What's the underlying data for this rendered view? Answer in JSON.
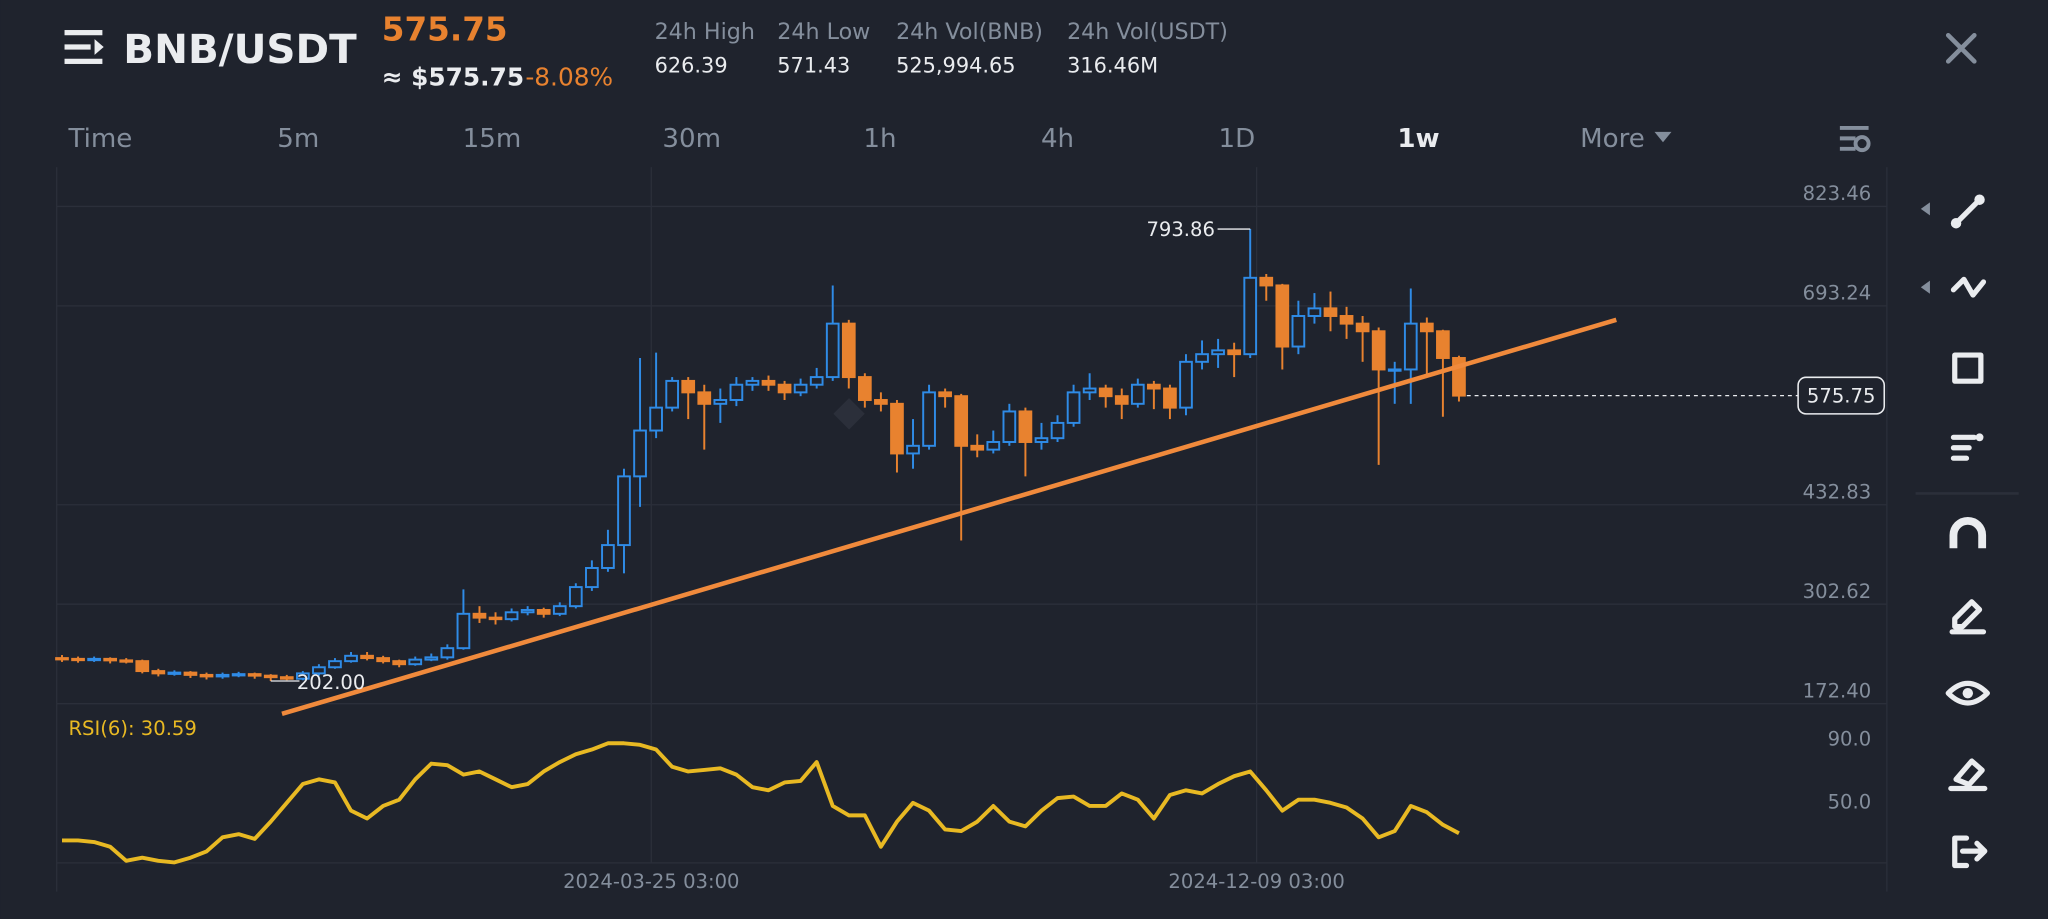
{
  "header": {
    "symbol": "BNB/USDT",
    "price": "575.75",
    "approx_price": "≈ $575.75",
    "change": "-8.08%",
    "stats": [
      {
        "label": "24h High",
        "value": "626.39"
      },
      {
        "label": "24h Low",
        "value": "571.43"
      },
      {
        "label": "24h Vol(BNB)",
        "value": "525,994.65"
      },
      {
        "label": "24h Vol(USDT)",
        "value": "316.46M"
      }
    ]
  },
  "tabs": [
    "Time",
    "5m",
    "15m",
    "30m",
    "1h",
    "4h",
    "1D",
    "1w",
    "More"
  ],
  "active_tab": "1w",
  "chart_data": [
    {
      "type": "candlestick",
      "up_color": "#2f8be6",
      "down_color": "#e8822f",
      "open": [
        232,
        231,
        230,
        231,
        229,
        228,
        215,
        212,
        213,
        210,
        208,
        210,
        211,
        209,
        207,
        205,
        212,
        220,
        228,
        235,
        232,
        228,
        224,
        230,
        233,
        245,
        290,
        285,
        283,
        292,
        295,
        290,
        300,
        325,
        350,
        380,
        470,
        530,
        560,
        595,
        580,
        565,
        570,
        590,
        595,
        590,
        580,
        590,
        600,
        670,
        600,
        570,
        565,
        500,
        510,
        580,
        575,
        510,
        505,
        515,
        555,
        515,
        520,
        540,
        580,
        585,
        575,
        565,
        590,
        585,
        560,
        620,
        630,
        635,
        630,
        730,
        720,
        640,
        680,
        690,
        680,
        670,
        660,
        610,
        610,
        670,
        660,
        625
      ],
      "high": [
        236,
        234,
        234,
        233,
        232,
        230,
        218,
        216,
        215,
        213,
        213,
        214,
        213,
        211,
        210,
        215,
        224,
        232,
        240,
        240,
        235,
        230,
        234,
        238,
        250,
        322,
        300,
        292,
        297,
        300,
        298,
        305,
        330,
        360,
        400,
        480,
        625,
        632,
        600,
        600,
        590,
        585,
        600,
        600,
        602,
        595,
        598,
        612,
        720,
        675,
        605,
        580,
        570,
        545,
        590,
        585,
        578,
        525,
        530,
        565,
        560,
        540,
        550,
        590,
        605,
        590,
        585,
        598,
        595,
        590,
        630,
        648,
        650,
        645,
        793.86,
        735,
        722,
        700,
        710,
        712,
        692,
        680,
        665,
        620,
        716,
        678,
        662,
        628
      ],
      "low": [
        227,
        226,
        227,
        225,
        225,
        212,
        208,
        209,
        206,
        204,
        205,
        207,
        205,
        202.0,
        203,
        203,
        209,
        218,
        226,
        229,
        225,
        220,
        222,
        228,
        230,
        243,
        278,
        276,
        280,
        288,
        285,
        287,
        297,
        320,
        345,
        343,
        430,
        520,
        555,
        545,
        505,
        540,
        562,
        582,
        582,
        570,
        575,
        585,
        595,
        585,
        560,
        555,
        475,
        480,
        505,
        560,
        386,
        495,
        500,
        510,
        470,
        505,
        515,
        535,
        570,
        560,
        545,
        560,
        558,
        545,
        550,
        610,
        612,
        600,
        625,
        700,
        610,
        630,
        670,
        660,
        650,
        620,
        485,
        565,
        565,
        600,
        548,
        568
      ],
      "close": [
        231,
        230,
        231,
        229,
        228,
        215,
        212,
        213,
        210,
        208,
        210,
        211,
        209,
        207,
        205,
        212,
        220,
        228,
        235,
        232,
        228,
        224,
        230,
        233,
        245,
        290,
        285,
        283,
        292,
        295,
        290,
        300,
        325,
        350,
        380,
        470,
        530,
        560,
        595,
        580,
        565,
        570,
        590,
        595,
        590,
        580,
        590,
        600,
        670,
        600,
        570,
        565,
        500,
        510,
        580,
        575,
        510,
        505,
        515,
        555,
        515,
        520,
        540,
        580,
        585,
        575,
        565,
        590,
        585,
        560,
        620,
        630,
        635,
        630,
        730,
        720,
        640,
        680,
        690,
        680,
        670,
        660,
        610,
        610,
        670,
        660,
        625,
        575.75
      ],
      "high_label": "793.86",
      "low_label": "202.00",
      "xlim": [
        -0.33,
        113.65
      ],
      "ylim": [
        172.4,
        875
      ],
      "yticks": [
        823.46,
        693.24,
        432.83,
        302.62,
        {
          "value": 172.4,
          "label": "172.40"
        }
      ],
      "xticks": [
        {
          "value": 36.7,
          "label": "2024-03-25 03:00"
        },
        {
          "value": 74.4,
          "label": "2024-12-09 03:00"
        }
      ],
      "grid": true,
      "trendline": {
        "x": [
          13.7,
          96.8
        ],
        "y": [
          159,
          675
        ],
        "color": "#f08a3c"
      }
    },
    {
      "type": "line",
      "series": [
        {
          "name": "RSI(6): 30.59",
          "color": "#e8b923",
          "values": [
            26,
            26,
            25,
            22,
            13,
            15,
            13,
            12,
            15,
            19,
            28,
            30,
            27,
            38,
            50,
            62,
            65,
            63,
            45,
            40,
            48,
            52,
            65,
            75,
            74,
            68,
            70,
            65,
            60,
            62,
            70,
            76,
            81,
            84,
            88,
            88,
            87,
            84,
            73,
            70,
            71,
            72,
            68,
            60,
            58,
            63,
            64,
            76,
            48,
            42,
            42,
            22,
            38,
            50,
            45,
            33,
            32,
            38,
            48,
            38,
            35,
            45,
            53,
            54,
            48,
            48,
            56,
            52,
            40,
            55,
            58,
            56,
            62,
            67,
            70,
            58,
            45,
            52,
            52,
            50,
            47,
            40,
            28,
            32,
            48,
            44,
            36,
            30.59
          ]
        }
      ],
      "ylim": [
        11.7,
        113.3
      ],
      "yticks": [
        {
          "value": 90,
          "label": "90.0"
        },
        {
          "value": 50,
          "label": "50.0"
        }
      ]
    }
  ]
}
